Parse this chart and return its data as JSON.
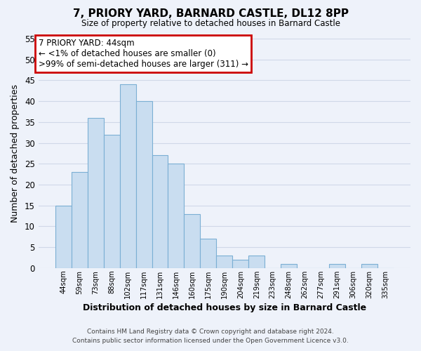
{
  "title": "7, PRIORY YARD, BARNARD CASTLE, DL12 8PP",
  "subtitle": "Size of property relative to detached houses in Barnard Castle",
  "xlabel": "Distribution of detached houses by size in Barnard Castle",
  "ylabel": "Number of detached properties",
  "footer_line1": "Contains HM Land Registry data © Crown copyright and database right 2024.",
  "footer_line2": "Contains public sector information licensed under the Open Government Licence v3.0.",
  "bar_labels": [
    "44sqm",
    "59sqm",
    "73sqm",
    "88sqm",
    "102sqm",
    "117sqm",
    "131sqm",
    "146sqm",
    "160sqm",
    "175sqm",
    "190sqm",
    "204sqm",
    "219sqm",
    "233sqm",
    "248sqm",
    "262sqm",
    "277sqm",
    "291sqm",
    "306sqm",
    "320sqm",
    "335sqm"
  ],
  "bar_values": [
    15,
    23,
    36,
    32,
    44,
    40,
    27,
    25,
    13,
    7,
    3,
    2,
    3,
    0,
    1,
    0,
    0,
    1,
    0,
    1,
    0
  ],
  "bar_color": "#c9ddf0",
  "bar_edge_color": "#7bafd4",
  "ylim": [
    0,
    55
  ],
  "yticks": [
    0,
    5,
    10,
    15,
    20,
    25,
    30,
    35,
    40,
    45,
    50,
    55
  ],
  "annotation_line1": "7 PRIORY YARD: 44sqm",
  "annotation_line2": "← <1% of detached houses are smaller (0)",
  "annotation_line3": ">99% of semi-detached houses are larger (311) →",
  "annotation_box_edgecolor": "#cc0000",
  "grid_color": "#d0d8e8",
  "background_color": "#eef2fa",
  "plot_bg_color": "#eef2fa"
}
